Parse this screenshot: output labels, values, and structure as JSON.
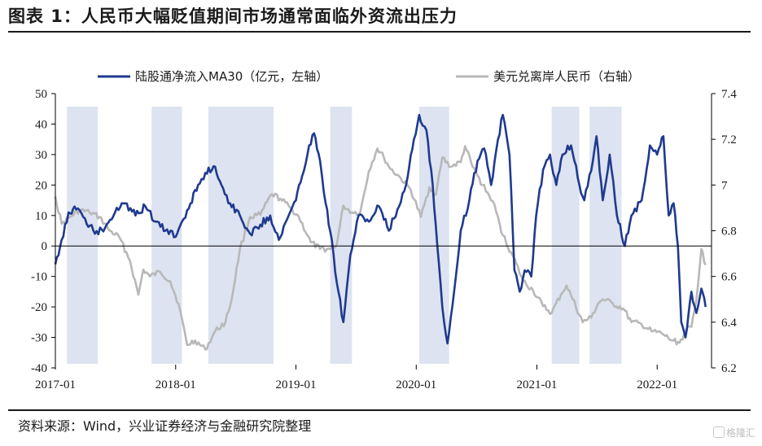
{
  "header": {
    "title": "图表 1：人民币大幅贬值期间市场通常面临外资流出压力"
  },
  "footer": {
    "source": "资料来源：Wind，兴业证券经济与金融研究院整理",
    "watermark": "格隆汇"
  },
  "colors": {
    "left_series": "#1f3a8f",
    "right_series": "#b8b8b8",
    "shade": "#dde3f0",
    "axis": "#000000"
  },
  "chart_data": {
    "type": "line",
    "title": "",
    "legend_position": "top",
    "grid": false,
    "x_ticks": [
      "2017-01",
      "2018-01",
      "2019-01",
      "2020-01",
      "2021-01",
      "2022-01"
    ],
    "xlim": [
      "2017-01-01",
      "2022-06-15"
    ],
    "y_left": {
      "lim": [
        -40,
        50
      ],
      "ticks": [
        "-40",
        "-30",
        "-20",
        "-10",
        "0",
        "10",
        "20",
        "30",
        "40",
        "50"
      ]
    },
    "y_right": {
      "lim": [
        6.2,
        7.4
      ],
      "ticks": [
        "6.2",
        "6.4",
        "6.6",
        "6.8",
        "7",
        "7.2",
        "7.4"
      ]
    },
    "shaded_periods": [
      [
        "2017-02-05",
        "2017-05-10"
      ],
      [
        "2017-10-20",
        "2018-01-20"
      ],
      [
        "2018-04-10",
        "2018-10-25"
      ],
      [
        "2019-04-15",
        "2019-06-20"
      ],
      [
        "2020-01-10",
        "2020-04-10"
      ],
      [
        "2021-02-15",
        "2021-05-10"
      ],
      [
        "2021-06-10",
        "2021-09-15"
      ]
    ],
    "series": [
      {
        "name": "陆股通净流入MA30（亿元，左轴）",
        "axis": "left",
        "points": [
          [
            "2017-01-01",
            -6
          ],
          [
            "2017-01-20",
            2
          ],
          [
            "2017-02-10",
            11
          ],
          [
            "2017-03-05",
            12
          ],
          [
            "2017-04-01",
            9
          ],
          [
            "2017-05-01",
            4
          ],
          [
            "2017-06-01",
            6
          ],
          [
            "2017-07-01",
            11
          ],
          [
            "2017-08-01",
            14
          ],
          [
            "2017-09-01",
            10
          ],
          [
            "2017-10-01",
            13
          ],
          [
            "2017-11-01",
            8
          ],
          [
            "2017-12-01",
            5
          ],
          [
            "2018-01-01",
            3
          ],
          [
            "2018-01-20",
            8
          ],
          [
            "2018-02-15",
            14
          ],
          [
            "2018-03-10",
            20
          ],
          [
            "2018-04-01",
            24
          ],
          [
            "2018-05-01",
            26
          ],
          [
            "2018-05-20",
            20
          ],
          [
            "2018-06-15",
            14
          ],
          [
            "2018-07-15",
            10
          ],
          [
            "2018-08-15",
            4
          ],
          [
            "2018-09-15",
            7
          ],
          [
            "2018-10-15",
            10
          ],
          [
            "2018-11-10",
            2
          ],
          [
            "2018-12-10",
            10
          ],
          [
            "2019-01-01",
            15
          ],
          [
            "2019-01-20",
            23
          ],
          [
            "2019-02-10",
            33
          ],
          [
            "2019-02-25",
            37
          ],
          [
            "2019-03-15",
            28
          ],
          [
            "2019-04-01",
            14
          ],
          [
            "2019-04-20",
            2
          ],
          [
            "2019-05-05",
            -12
          ],
          [
            "2019-05-25",
            -25
          ],
          [
            "2019-06-15",
            -3
          ],
          [
            "2019-07-10",
            10
          ],
          [
            "2019-08-10",
            8
          ],
          [
            "2019-09-10",
            13
          ],
          [
            "2019-10-10",
            5
          ],
          [
            "2019-11-05",
            12
          ],
          [
            "2019-12-01",
            20
          ],
          [
            "2019-12-25",
            35
          ],
          [
            "2020-01-10",
            43
          ],
          [
            "2020-02-01",
            38
          ],
          [
            "2020-02-20",
            20
          ],
          [
            "2020-03-05",
            0
          ],
          [
            "2020-03-20",
            -20
          ],
          [
            "2020-04-05",
            -32
          ],
          [
            "2020-04-25",
            -15
          ],
          [
            "2020-05-15",
            5
          ],
          [
            "2020-06-10",
            15
          ],
          [
            "2020-07-05",
            28
          ],
          [
            "2020-07-25",
            32
          ],
          [
            "2020-08-15",
            20
          ],
          [
            "2020-09-05",
            35
          ],
          [
            "2020-09-20",
            43
          ],
          [
            "2020-10-10",
            30
          ],
          [
            "2020-10-25",
            -8
          ],
          [
            "2020-11-10",
            -15
          ],
          [
            "2020-11-25",
            -8
          ],
          [
            "2020-12-15",
            -10
          ],
          [
            "2020-12-30",
            10
          ],
          [
            "2021-01-20",
            25
          ],
          [
            "2021-02-10",
            30
          ],
          [
            "2021-03-01",
            20
          ],
          [
            "2021-03-20",
            30
          ],
          [
            "2021-04-15",
            33
          ],
          [
            "2021-05-10",
            20
          ],
          [
            "2021-05-25",
            15
          ],
          [
            "2021-06-20",
            28
          ],
          [
            "2021-07-01",
            36
          ],
          [
            "2021-07-20",
            15
          ],
          [
            "2021-08-10",
            30
          ],
          [
            "2021-09-01",
            10
          ],
          [
            "2021-09-25",
            0
          ],
          [
            "2021-10-15",
            10
          ],
          [
            "2021-11-15",
            15
          ],
          [
            "2021-12-10",
            33
          ],
          [
            "2022-01-01",
            30
          ],
          [
            "2022-01-20",
            36
          ],
          [
            "2022-02-05",
            10
          ],
          [
            "2022-02-20",
            14
          ],
          [
            "2022-03-05",
            0
          ],
          [
            "2022-03-15",
            -25
          ],
          [
            "2022-03-28",
            -30
          ],
          [
            "2022-04-15",
            -15
          ],
          [
            "2022-04-30",
            -22
          ],
          [
            "2022-05-15",
            -14
          ],
          [
            "2022-05-28",
            -20
          ]
        ]
      },
      {
        "name": "美元兑离岸人民币（右轴）",
        "axis": "right",
        "points": [
          [
            "2017-01-01",
            6.95
          ],
          [
            "2017-01-20",
            6.83
          ],
          [
            "2017-02-15",
            6.86
          ],
          [
            "2017-03-15",
            6.89
          ],
          [
            "2017-04-15",
            6.88
          ],
          [
            "2017-05-15",
            6.86
          ],
          [
            "2017-06-15",
            6.8
          ],
          [
            "2017-07-15",
            6.77
          ],
          [
            "2017-08-15",
            6.67
          ],
          [
            "2017-09-10",
            6.52
          ],
          [
            "2017-09-25",
            6.63
          ],
          [
            "2017-10-15",
            6.6
          ],
          [
            "2017-11-15",
            6.62
          ],
          [
            "2017-12-15",
            6.58
          ],
          [
            "2018-01-10",
            6.48
          ],
          [
            "2018-02-05",
            6.3
          ],
          [
            "2018-03-01",
            6.32
          ],
          [
            "2018-04-01",
            6.28
          ],
          [
            "2018-05-01",
            6.36
          ],
          [
            "2018-06-01",
            6.4
          ],
          [
            "2018-06-20",
            6.5
          ],
          [
            "2018-07-15",
            6.72
          ],
          [
            "2018-08-15",
            6.86
          ],
          [
            "2018-09-15",
            6.87
          ],
          [
            "2018-10-20",
            6.96
          ],
          [
            "2018-11-15",
            6.94
          ],
          [
            "2018-12-15",
            6.9
          ],
          [
            "2019-01-10",
            6.86
          ],
          [
            "2019-02-15",
            6.75
          ],
          [
            "2019-03-15",
            6.72
          ],
          [
            "2019-04-15",
            6.72
          ],
          [
            "2019-05-05",
            6.74
          ],
          [
            "2019-05-25",
            6.91
          ],
          [
            "2019-06-20",
            6.88
          ],
          [
            "2019-07-15",
            6.88
          ],
          [
            "2019-08-10",
            7.06
          ],
          [
            "2019-09-05",
            7.16
          ],
          [
            "2019-09-25",
            7.12
          ],
          [
            "2019-10-15",
            7.07
          ],
          [
            "2019-11-15",
            7.03
          ],
          [
            "2019-12-15",
            6.98
          ],
          [
            "2020-01-15",
            6.86
          ],
          [
            "2020-02-10",
            6.99
          ],
          [
            "2020-03-01",
            6.96
          ],
          [
            "2020-03-20",
            7.12
          ],
          [
            "2020-04-15",
            7.08
          ],
          [
            "2020-05-15",
            7.1
          ],
          [
            "2020-05-28",
            7.17
          ],
          [
            "2020-06-20",
            7.08
          ],
          [
            "2020-07-20",
            7.0
          ],
          [
            "2020-08-20",
            6.93
          ],
          [
            "2020-09-20",
            6.78
          ],
          [
            "2020-10-20",
            6.69
          ],
          [
            "2020-11-20",
            6.58
          ],
          [
            "2020-12-20",
            6.54
          ],
          [
            "2021-01-20",
            6.47
          ],
          [
            "2021-02-15",
            6.44
          ],
          [
            "2021-03-15",
            6.52
          ],
          [
            "2021-04-01",
            6.56
          ],
          [
            "2021-04-20",
            6.5
          ],
          [
            "2021-05-20",
            6.4
          ],
          [
            "2021-06-15",
            6.42
          ],
          [
            "2021-07-05",
            6.48
          ],
          [
            "2021-07-20",
            6.5
          ],
          [
            "2021-08-20",
            6.48
          ],
          [
            "2021-09-20",
            6.46
          ],
          [
            "2021-10-15",
            6.4
          ],
          [
            "2021-11-15",
            6.39
          ],
          [
            "2021-12-15",
            6.36
          ],
          [
            "2022-01-15",
            6.35
          ],
          [
            "2022-02-15",
            6.32
          ],
          [
            "2022-03-10",
            6.31
          ],
          [
            "2022-03-28",
            6.36
          ],
          [
            "2022-04-15",
            6.38
          ],
          [
            "2022-04-30",
            6.5
          ],
          [
            "2022-05-15",
            6.72
          ],
          [
            "2022-05-28",
            6.65
          ]
        ]
      }
    ]
  }
}
